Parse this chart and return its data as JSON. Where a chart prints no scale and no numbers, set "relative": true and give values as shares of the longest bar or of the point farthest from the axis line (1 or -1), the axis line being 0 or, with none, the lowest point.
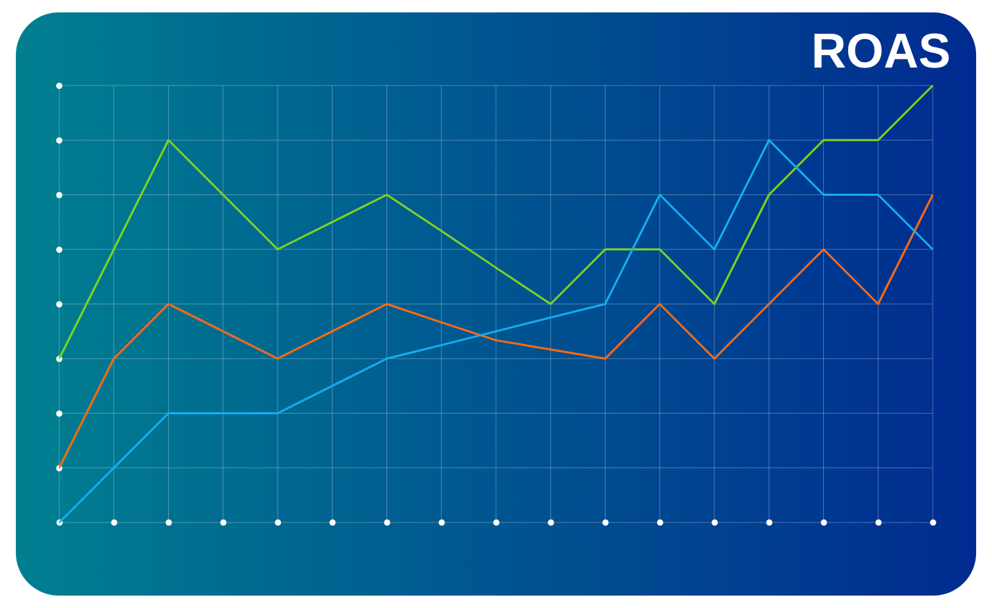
{
  "chart_data": {
    "type": "line",
    "title": "ROAS",
    "relative": true,
    "grid": true,
    "legend": false,
    "marker": "none",
    "line_style": "solid",
    "categories": [
      null,
      null,
      null,
      null,
      null,
      null,
      null,
      null,
      null,
      null,
      null,
      null,
      null,
      null,
      null,
      null,
      null
    ],
    "series": [
      {
        "color": "#7ed321",
        "values": [
          0.375,
          0.625,
          0.875,
          0.75,
          0.625,
          0.6875,
          0.75,
          0.667,
          0.583,
          0.5,
          0.625,
          0.625,
          0.5,
          0.75,
          0.875,
          0.875,
          1
        ]
      },
      {
        "color": "#ff6a13",
        "values": [
          0.125,
          0.375,
          0.5,
          0.4375,
          0.375,
          0.4375,
          0.5,
          0.458,
          0.417,
          0.396,
          0.375,
          0.5,
          0.375,
          0.5,
          0.625,
          0.5,
          0.75
        ]
      },
      {
        "color": "#14aeef",
        "values": [
          0,
          0.125,
          0.25,
          0.25,
          0.25,
          0.3125,
          0.375,
          0.406,
          0.4375,
          0.469,
          0.5,
          0.75,
          0.625,
          0.875,
          0.75,
          0.75,
          0.625
        ]
      }
    ]
  }
}
